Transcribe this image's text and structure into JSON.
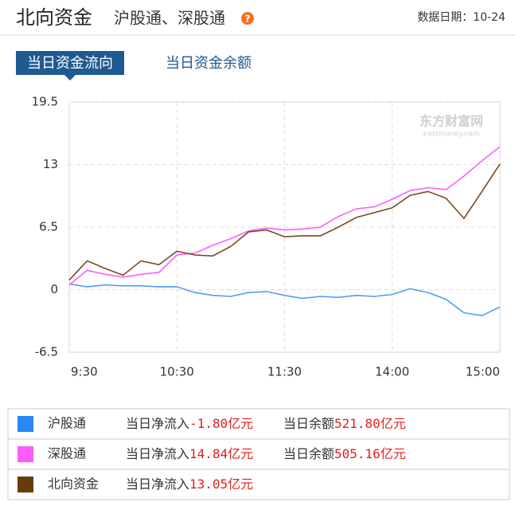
{
  "header": {
    "title": "北向资金",
    "subtitle": "沪股通、深股通",
    "date": "数据日期：10-24"
  },
  "tabs": [
    "当日资金流向",
    "当日资金余额"
  ],
  "chart_data": {
    "type": "line",
    "watermark": "东方财富网",
    "watermark_sub": "eastmoney.com",
    "x": [
      0,
      10,
      20,
      30,
      40,
      50,
      60,
      70,
      80,
      90,
      100,
      110,
      120,
      130,
      140,
      150,
      160,
      170,
      180,
      190,
      200,
      210,
      220,
      230,
      240
    ],
    "xlim": [
      0,
      240
    ],
    "xticks": [
      {
        "value": 0,
        "label": "9:30"
      },
      {
        "value": 60,
        "label": "10:30"
      },
      {
        "value": 120,
        "label": "11:30"
      },
      {
        "value": 180,
        "label": "14:00"
      },
      {
        "value": 240,
        "label": "15:00"
      }
    ],
    "ylim": [
      -6.5,
      19.5
    ],
    "yticks": [
      19.5,
      13,
      6.5,
      0,
      -6.5
    ],
    "grid": true,
    "series": [
      {
        "name": "沪股通",
        "color": "#4f9cf7",
        "legend_color": "#2a87f5",
        "values": [
          0.6,
          0.3,
          0.5,
          0.4,
          0.4,
          0.3,
          0.3,
          -0.3,
          -0.6,
          -0.7,
          -0.3,
          -0.2,
          -0.6,
          -0.9,
          -0.7,
          -0.8,
          -0.6,
          -0.7,
          -0.5,
          0.1,
          -0.3,
          -1.0,
          -2.4,
          -2.7,
          -1.8
        ]
      },
      {
        "name": "深股通",
        "color": "#ff5cff",
        "legend_color": "#ff5cff",
        "values": [
          0.5,
          2.0,
          1.6,
          1.3,
          1.6,
          1.8,
          3.6,
          3.8,
          4.6,
          5.3,
          6.1,
          6.4,
          6.2,
          6.3,
          6.5,
          7.6,
          8.4,
          8.6,
          9.4,
          10.3,
          10.6,
          10.4,
          11.8,
          13.4,
          14.84
        ]
      },
      {
        "name": "北向资金",
        "color": "#7a4a1e",
        "legend_color": "#6b3a0c",
        "values": [
          1.0,
          3.0,
          2.2,
          1.5,
          3.0,
          2.6,
          4.0,
          3.6,
          3.5,
          4.5,
          6.0,
          6.2,
          5.5,
          5.6,
          5.6,
          6.5,
          7.5,
          8.0,
          8.5,
          9.8,
          10.2,
          9.5,
          7.4,
          10.2,
          13.05
        ]
      }
    ]
  },
  "legend_table": {
    "rows": [
      {
        "inflow_label": "当日净流入",
        "inflow": "-1.80亿元",
        "balance_label": "当日余额",
        "balance": "521.80亿元"
      },
      {
        "inflow_label": "当日净流入",
        "inflow": "14.84亿元",
        "balance_label": "当日余额",
        "balance": "505.16亿元"
      },
      {
        "inflow_label": "当日净流入",
        "inflow": "13.05亿元"
      }
    ]
  }
}
